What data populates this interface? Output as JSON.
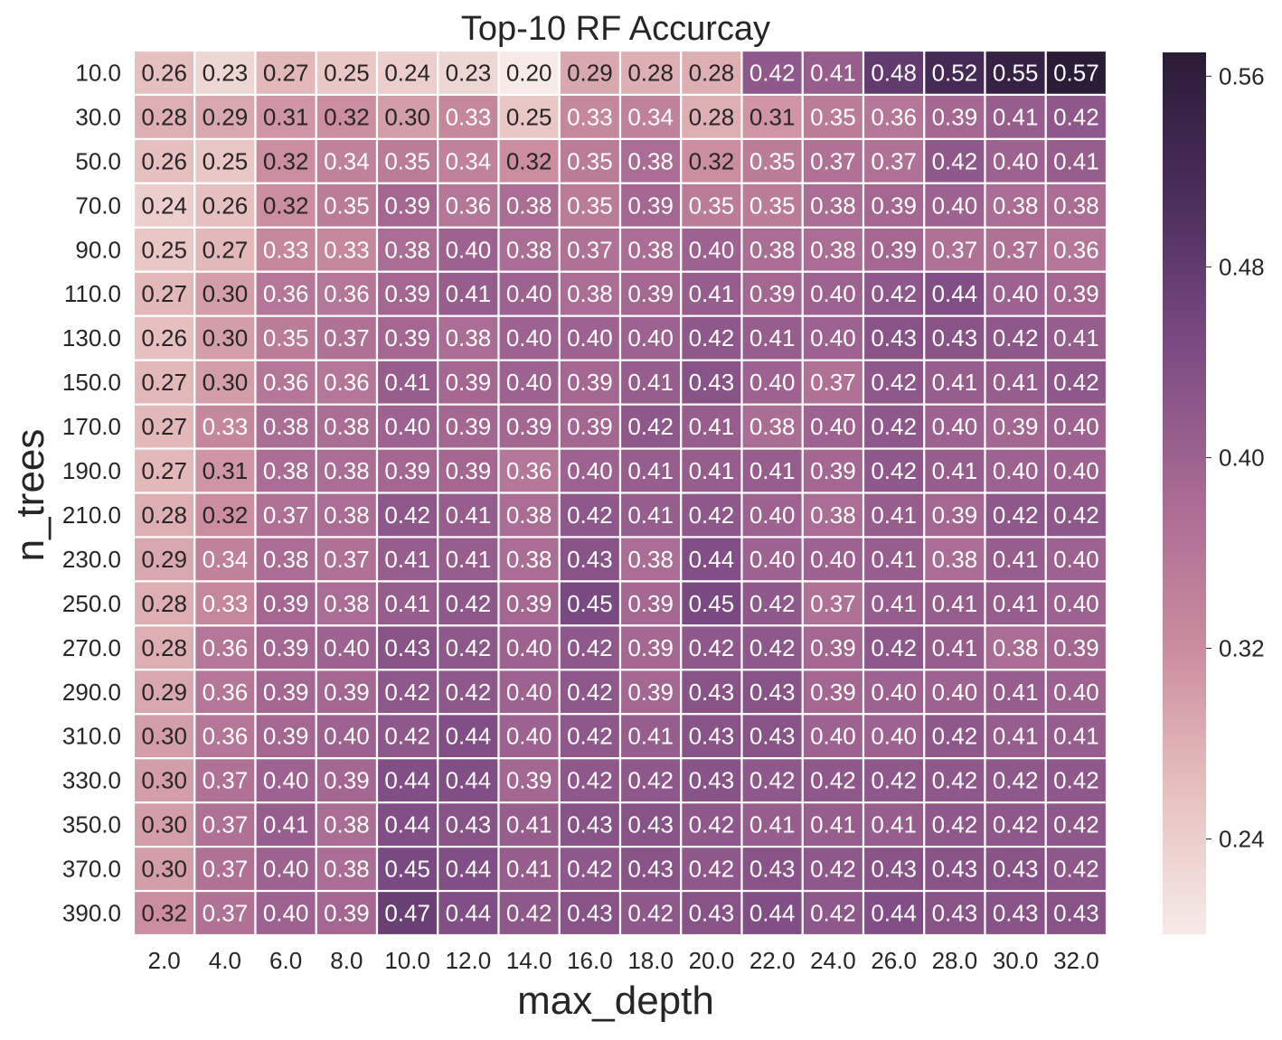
{
  "chart_data": {
    "type": "heatmap",
    "title": "Top-10 RF Accurcay",
    "xlabel": "max_depth",
    "ylabel": "n_trees",
    "x_tick_labels": [
      "2.0",
      "4.0",
      "6.0",
      "8.0",
      "10.0",
      "12.0",
      "14.0",
      "16.0",
      "18.0",
      "20.0",
      "22.0",
      "24.0",
      "26.0",
      "28.0",
      "30.0",
      "32.0"
    ],
    "y_tick_labels": [
      "10.0",
      "30.0",
      "50.0",
      "70.0",
      "90.0",
      "110.0",
      "130.0",
      "150.0",
      "170.0",
      "190.0",
      "210.0",
      "230.0",
      "250.0",
      "270.0",
      "290.0",
      "310.0",
      "330.0",
      "350.0",
      "370.0",
      "390.0"
    ],
    "values": [
      [
        0.26,
        0.23,
        0.27,
        0.25,
        0.24,
        0.23,
        0.2,
        0.29,
        0.28,
        0.28,
        0.42,
        0.41,
        0.48,
        0.52,
        0.55,
        0.57
      ],
      [
        0.28,
        0.29,
        0.31,
        0.32,
        0.3,
        0.33,
        0.25,
        0.33,
        0.34,
        0.28,
        0.31,
        0.35,
        0.36,
        0.39,
        0.41,
        0.42
      ],
      [
        0.26,
        0.25,
        0.32,
        0.34,
        0.35,
        0.34,
        0.32,
        0.35,
        0.38,
        0.32,
        0.35,
        0.37,
        0.37,
        0.42,
        0.4,
        0.41
      ],
      [
        0.24,
        0.26,
        0.32,
        0.35,
        0.39,
        0.36,
        0.38,
        0.35,
        0.39,
        0.35,
        0.35,
        0.38,
        0.39,
        0.4,
        0.38,
        0.38
      ],
      [
        0.25,
        0.27,
        0.33,
        0.33,
        0.38,
        0.4,
        0.38,
        0.37,
        0.38,
        0.4,
        0.38,
        0.38,
        0.39,
        0.37,
        0.37,
        0.36
      ],
      [
        0.27,
        0.3,
        0.36,
        0.36,
        0.39,
        0.41,
        0.4,
        0.38,
        0.39,
        0.41,
        0.39,
        0.4,
        0.42,
        0.44,
        0.4,
        0.39
      ],
      [
        0.26,
        0.3,
        0.35,
        0.37,
        0.39,
        0.38,
        0.4,
        0.4,
        0.4,
        0.42,
        0.41,
        0.4,
        0.43,
        0.43,
        0.42,
        0.41
      ],
      [
        0.27,
        0.3,
        0.36,
        0.36,
        0.41,
        0.39,
        0.4,
        0.39,
        0.41,
        0.43,
        0.4,
        0.37,
        0.42,
        0.41,
        0.41,
        0.42
      ],
      [
        0.27,
        0.33,
        0.38,
        0.38,
        0.4,
        0.39,
        0.39,
        0.39,
        0.42,
        0.41,
        0.38,
        0.4,
        0.42,
        0.4,
        0.39,
        0.4
      ],
      [
        0.27,
        0.31,
        0.38,
        0.38,
        0.39,
        0.39,
        0.36,
        0.4,
        0.41,
        0.41,
        0.41,
        0.39,
        0.42,
        0.41,
        0.4,
        0.4
      ],
      [
        0.28,
        0.32,
        0.37,
        0.38,
        0.42,
        0.41,
        0.38,
        0.42,
        0.41,
        0.42,
        0.4,
        0.38,
        0.41,
        0.39,
        0.42,
        0.42
      ],
      [
        0.29,
        0.34,
        0.38,
        0.37,
        0.41,
        0.41,
        0.38,
        0.43,
        0.38,
        0.44,
        0.4,
        0.4,
        0.41,
        0.38,
        0.41,
        0.4
      ],
      [
        0.28,
        0.33,
        0.39,
        0.38,
        0.41,
        0.42,
        0.39,
        0.45,
        0.39,
        0.45,
        0.42,
        0.37,
        0.41,
        0.41,
        0.41,
        0.4
      ],
      [
        0.28,
        0.36,
        0.39,
        0.4,
        0.43,
        0.42,
        0.4,
        0.42,
        0.39,
        0.42,
        0.42,
        0.39,
        0.42,
        0.41,
        0.38,
        0.39
      ],
      [
        0.29,
        0.36,
        0.39,
        0.39,
        0.42,
        0.42,
        0.4,
        0.42,
        0.39,
        0.43,
        0.43,
        0.39,
        0.4,
        0.4,
        0.41,
        0.4
      ],
      [
        0.3,
        0.36,
        0.39,
        0.4,
        0.42,
        0.44,
        0.4,
        0.42,
        0.41,
        0.43,
        0.43,
        0.4,
        0.4,
        0.42,
        0.41,
        0.41
      ],
      [
        0.3,
        0.37,
        0.4,
        0.39,
        0.44,
        0.44,
        0.39,
        0.42,
        0.42,
        0.43,
        0.42,
        0.42,
        0.42,
        0.42,
        0.42,
        0.42
      ],
      [
        0.3,
        0.37,
        0.41,
        0.38,
        0.44,
        0.43,
        0.41,
        0.43,
        0.43,
        0.42,
        0.41,
        0.41,
        0.41,
        0.42,
        0.42,
        0.42
      ],
      [
        0.3,
        0.37,
        0.4,
        0.38,
        0.45,
        0.44,
        0.41,
        0.42,
        0.43,
        0.42,
        0.43,
        0.42,
        0.43,
        0.43,
        0.43,
        0.42
      ],
      [
        0.32,
        0.37,
        0.4,
        0.39,
        0.47,
        0.44,
        0.42,
        0.43,
        0.42,
        0.43,
        0.44,
        0.42,
        0.44,
        0.43,
        0.43,
        0.43
      ]
    ],
    "colorbar": {
      "range": [
        0.2,
        0.57
      ],
      "tick_values": [
        0.24,
        0.32,
        0.4,
        0.48,
        0.56
      ],
      "tick_labels": [
        "0.24",
        "0.32",
        "0.40",
        "0.48",
        "0.56"
      ],
      "colors": [
        "#f6ebe7",
        "#e6bfbd",
        "#c98a9d",
        "#a76a93",
        "#7c4b83",
        "#4b2e5c",
        "#2a1b37"
      ]
    },
    "grid": true,
    "legend": "right",
    "annotations": "cell values"
  }
}
